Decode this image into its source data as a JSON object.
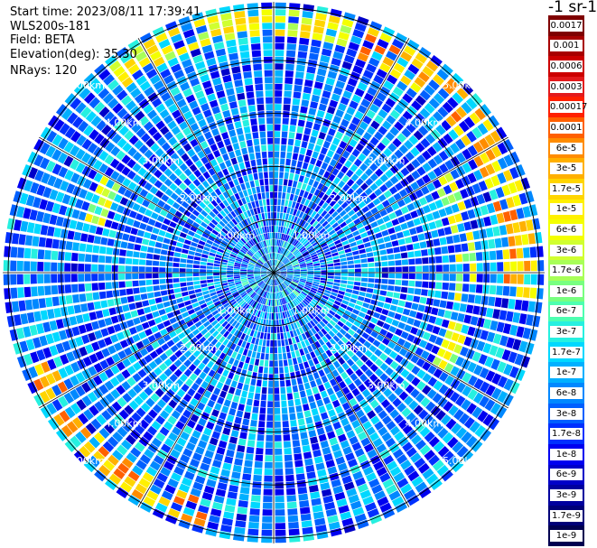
{
  "header": {
    "start_time": "Start time: 2023/08/11 17:39:41",
    "instrument": "WLS200s-181",
    "field": "Field: BETA",
    "elevation": "Elevation(deg): 35.30",
    "nrays": "NRays: 120"
  },
  "colorbar": {
    "unit_label": "-1 sr-1",
    "ticks": [
      "0.0017",
      "0.001",
      "0.0006",
      "0.0003",
      "0.00017",
      "0.0001",
      "6e-5",
      "3e-5",
      "1.7e-5",
      "1e-5",
      "6e-6",
      "3e-6",
      "1.7e-6",
      "1e-6",
      "6e-7",
      "3e-7",
      "1.7e-7",
      "1e-7",
      "6e-8",
      "3e-8",
      "1.7e-8",
      "1e-8",
      "6e-9",
      "3e-9",
      "1.7e-9",
      "1e-9"
    ],
    "colors": [
      "#7f0000",
      "#a80000",
      "#cc0000",
      "#e31a1c",
      "#ff2000",
      "#ff6000",
      "#ff8c00",
      "#ffb000",
      "#ffd500",
      "#fff000",
      "#f4ff00",
      "#d0ff30",
      "#a8ff58",
      "#78ff80",
      "#4dffb0",
      "#26f0e0",
      "#00d8ff",
      "#00b0ff",
      "#0088ff",
      "#0060ff",
      "#0030ff",
      "#0000f0",
      "#0000c8",
      "#00009e",
      "#000078",
      "#000050"
    ]
  },
  "chart_data": {
    "type": "heatmap",
    "projection": "polar (PPI scan)",
    "field": "BETA",
    "n_rays": 120,
    "elevation_deg": 35.3,
    "range_rings_km": [
      1,
      2,
      3,
      4,
      5
    ],
    "ring_labels": [
      "1.00km",
      "2.00km",
      "3.00km",
      "4.00km",
      "5.00km"
    ],
    "max_range_km": 5.1,
    "color_scale": "log",
    "value_range": [
      1e-09,
      0.0017
    ],
    "background_level": 5e-08,
    "features": [
      {
        "desc": "enhanced aerosol arc, north-east",
        "range_km": [
          4.3,
          5.0
        ],
        "azimuth_deg": [
          20,
          95
        ],
        "level": 2e-05
      },
      {
        "desc": "enhanced aerosol arc, north",
        "range_km": [
          4.5,
          5.0
        ],
        "azimuth_deg": [
          -40,
          20
        ],
        "level": 6e-06
      },
      {
        "desc": "enhanced aerosol arc, south-west",
        "range_km": [
          4.4,
          5.0
        ],
        "azimuth_deg": [
          195,
          250
        ],
        "level": 3e-05
      },
      {
        "desc": "enhanced arc, east",
        "range_km": [
          3.4,
          3.8
        ],
        "azimuth_deg": [
          60,
          120
        ],
        "level": 3e-06
      },
      {
        "desc": "enhanced arc, west",
        "range_km": [
          3.3,
          3.7
        ],
        "azimuth_deg": [
          285,
          300
        ],
        "level": 3e-06
      }
    ]
  }
}
